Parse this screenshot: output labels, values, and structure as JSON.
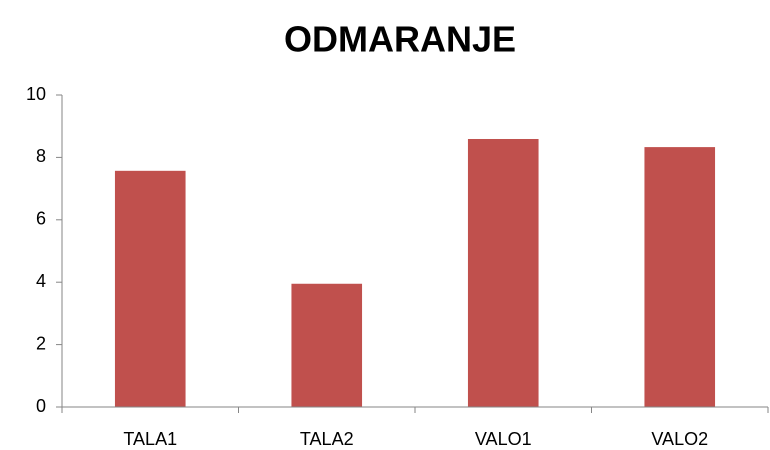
{
  "chart_data": {
    "type": "bar",
    "title": "ODMARANJE",
    "categories": [
      "TALA1",
      "TALA2",
      "VALO1",
      "VALO2"
    ],
    "values": [
      7.57,
      3.95,
      8.59,
      8.33
    ],
    "color": "#c0504d",
    "ylim": [
      0,
      10
    ],
    "yticks": [
      0,
      2,
      4,
      6,
      8,
      10
    ],
    "grid": false
  }
}
